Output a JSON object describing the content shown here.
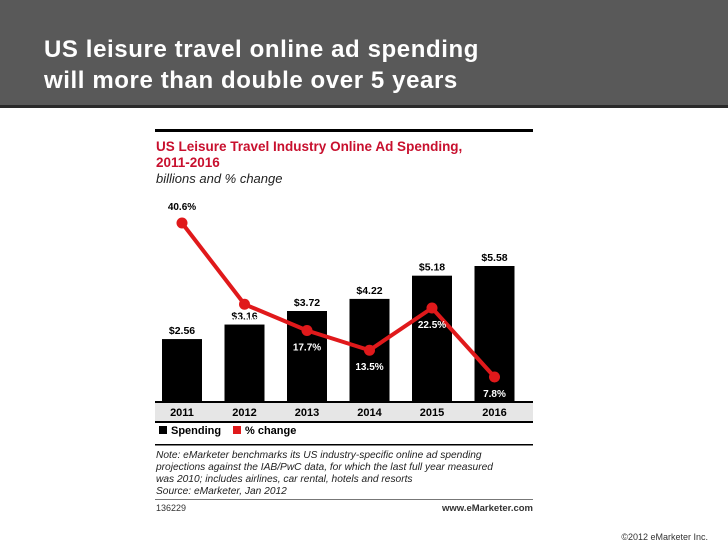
{
  "slide": {
    "title_line1": "US leisure travel online ad spending",
    "title_line2": "will more than double over 5 years",
    "copyright": "©2012 eMarketer Inc."
  },
  "chart_data": {
    "type": "bar",
    "title_line1": "US Leisure Travel Industry Online Ad Spending,",
    "title_line2": "2011-2016",
    "subtitle": "billions and % change",
    "categories": [
      "2011",
      "2012",
      "2013",
      "2014",
      "2015",
      "2016"
    ],
    "series": [
      {
        "name": "Spending",
        "kind": "bar",
        "color": "#000000",
        "values": [
          2.56,
          3.16,
          3.72,
          4.22,
          5.18,
          5.58
        ],
        "labels": [
          "$2.56",
          "$3.16",
          "$3.72",
          "$4.22",
          "$5.18",
          "$5.58"
        ]
      },
      {
        "name": "% change",
        "kind": "line",
        "color": "#e0191b",
        "values": [
          40.6,
          23.3,
          17.7,
          13.5,
          22.5,
          7.8
        ],
        "labels": [
          "40.6%",
          "23.3%",
          "17.7%",
          "13.5%",
          "22.5%",
          "7.8%"
        ]
      }
    ],
    "legend": [
      "Spending",
      "% change"
    ],
    "legend_position": "bottom-left",
    "grid": false,
    "note_lines": [
      "Note: eMarketer benchmarks its US industry-specific online ad spending",
      "projections against the IAB/PwC data, for which the last full year measured",
      "was 2010;  includes airlines, car rental, hotels and resorts",
      "Source: eMarketer, Jan 2012"
    ],
    "chart_id": "136229",
    "brand": "www.eMarketer.com",
    "title_color": "#c8102e"
  }
}
